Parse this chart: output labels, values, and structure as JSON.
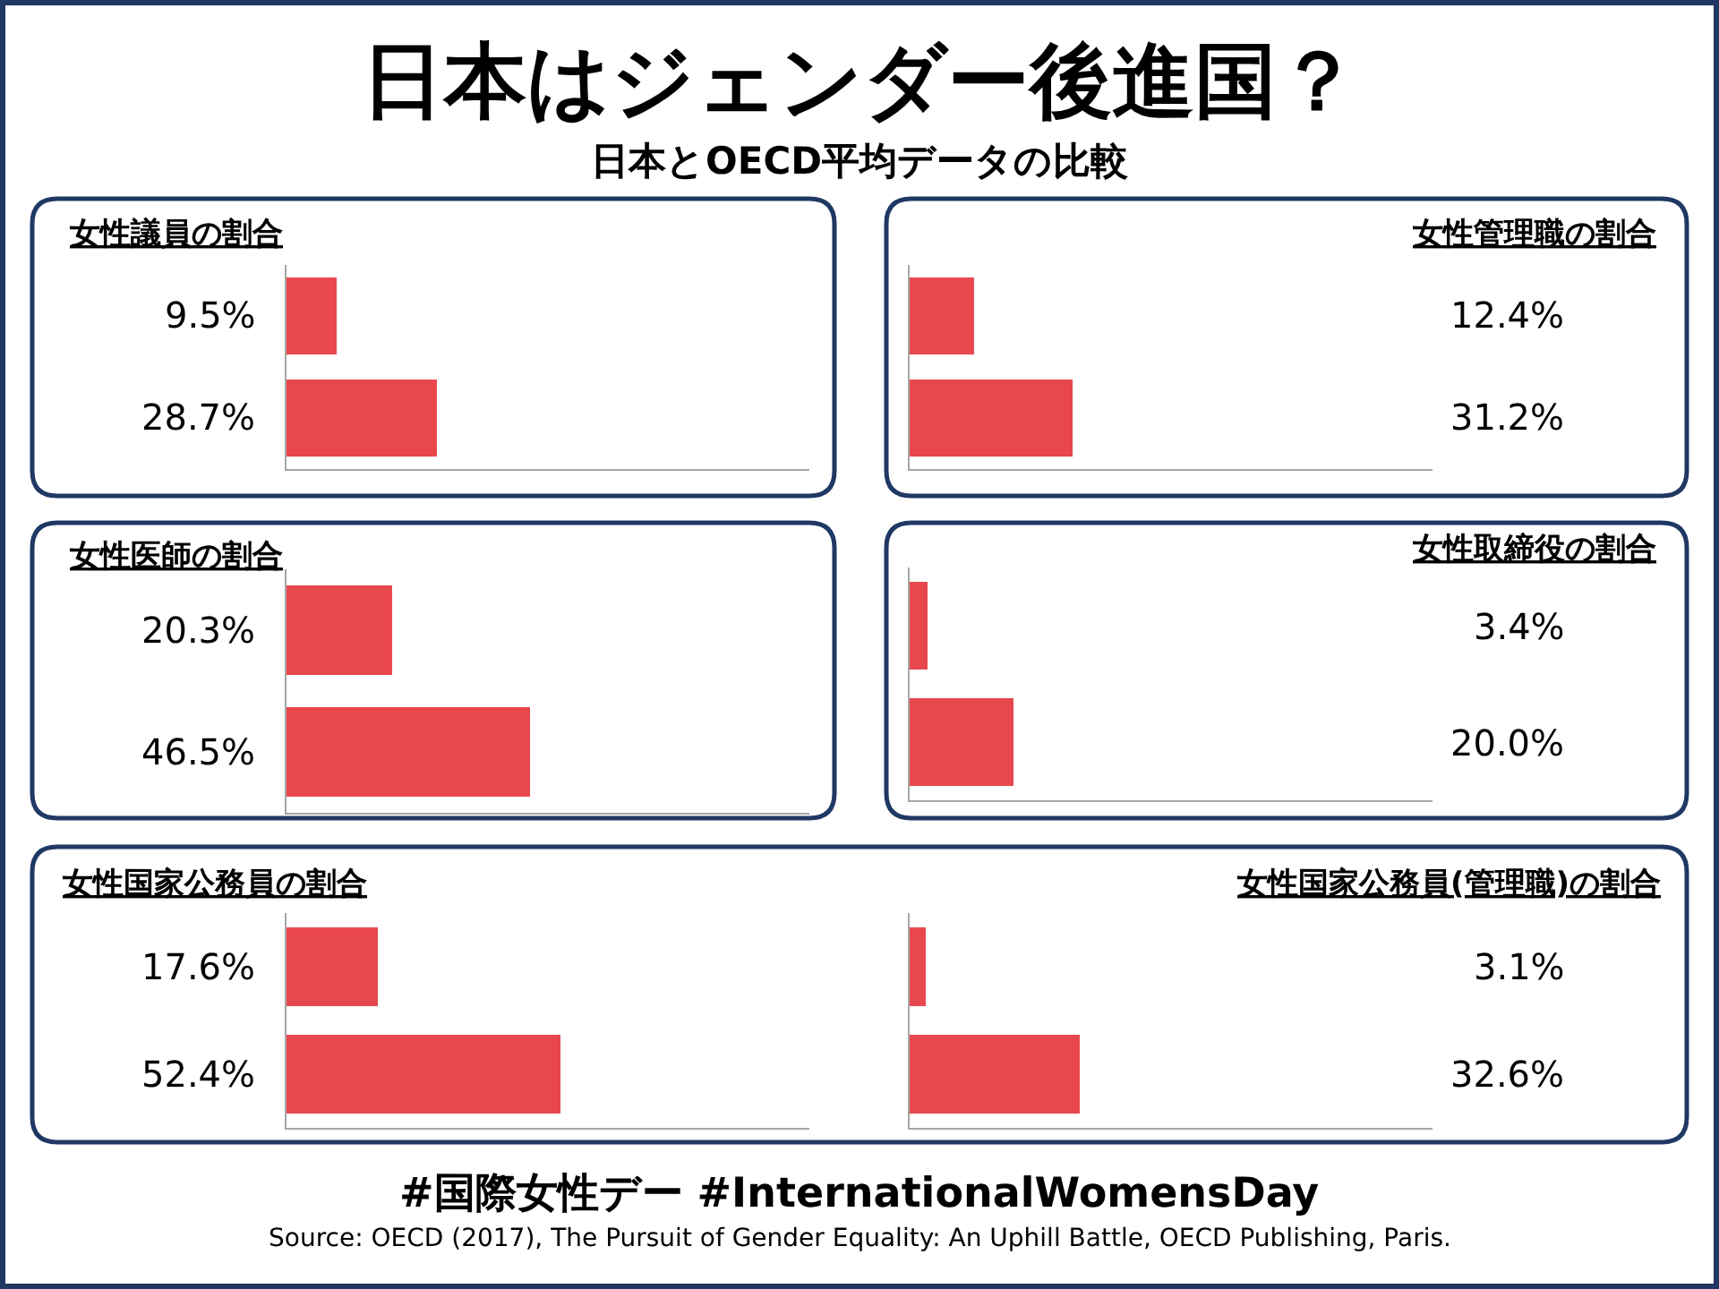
{
  "chart_data": [
    {
      "type": "other",
      "title": "日本はジェンダー後進国？",
      "subtitle": "日本とOECD平均データの比較",
      "annotations": [
        "#国際女性デー #InternationalWomensDay",
        "Source: OECD (2017), The Pursuit of Gender Equality: An Uphill Battle, OECD Publishing, Paris."
      ]
    },
    {
      "type": "bar",
      "orientation": "horizontal",
      "title": "女性議員の割合",
      "categories": [
        null,
        null
      ],
      "values": [
        9.5,
        28.7
      ],
      "value_labels": [
        "9.5%",
        "28.7%"
      ],
      "color": "#e8484d",
      "xlim": [
        0,
        100
      ]
    },
    {
      "type": "bar",
      "orientation": "horizontal",
      "title": "女性管理職の割合",
      "categories": [
        null,
        null
      ],
      "values": [
        12.4,
        31.2
      ],
      "value_labels": [
        "12.4%",
        "31.2%"
      ],
      "color": "#e8484d",
      "xlim": [
        0,
        100
      ]
    },
    {
      "type": "bar",
      "orientation": "horizontal",
      "title": "女性医師の割合",
      "categories": [
        null,
        null
      ],
      "values": [
        20.3,
        46.5
      ],
      "value_labels": [
        "20.3%",
        "46.5%"
      ],
      "color": "#e8484d",
      "xlim": [
        0,
        100
      ]
    },
    {
      "type": "bar",
      "orientation": "horizontal",
      "title": "女性取締役の割合",
      "categories": [
        null,
        null
      ],
      "values": [
        3.4,
        20.0
      ],
      "value_labels": [
        "3.4%",
        "20.0%"
      ],
      "color": "#e8484d",
      "xlim": [
        0,
        100
      ]
    },
    {
      "type": "bar",
      "orientation": "horizontal",
      "title": "女性国家公務員の割合",
      "categories": [
        null,
        null
      ],
      "values": [
        17.6,
        52.4
      ],
      "value_labels": [
        "17.6%",
        "52.4%"
      ],
      "color": "#e8484d",
      "xlim": [
        0,
        100
      ]
    },
    {
      "type": "bar",
      "orientation": "horizontal",
      "title": "女性国家公務員(管理職)の割合",
      "categories": [
        null,
        null
      ],
      "values": [
        3.1,
        32.6
      ],
      "value_labels": [
        "3.1%",
        "32.6%"
      ],
      "color": "#e8484d",
      "xlim": [
        0,
        100
      ]
    }
  ]
}
